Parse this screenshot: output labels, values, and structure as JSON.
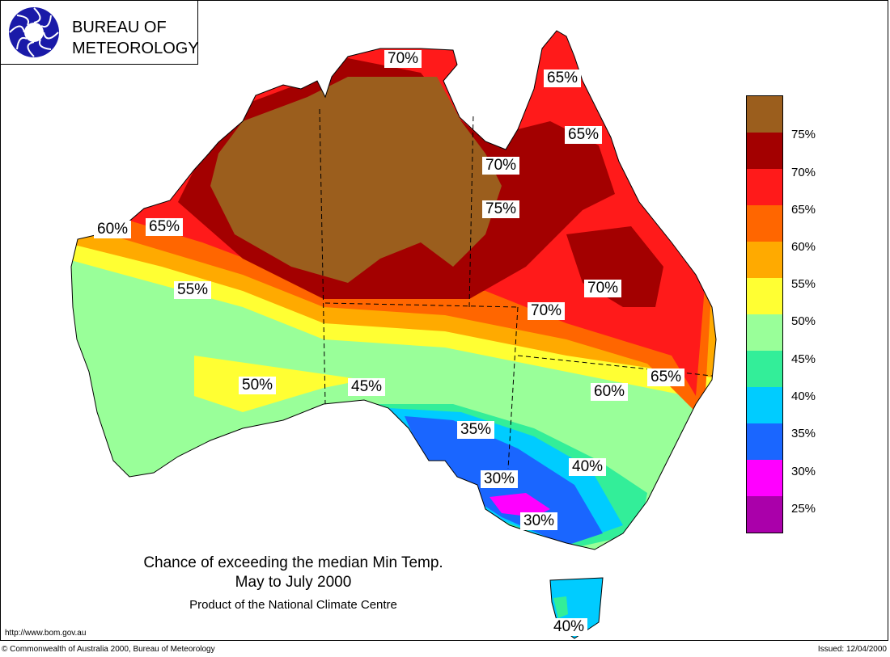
{
  "logo": {
    "line1": "BUREAU OF",
    "line2": "METEOROLOGY",
    "icon": "bom-swirl-logo"
  },
  "title": {
    "line1": "Chance of exceeding the median Min Temp.",
    "line2": "May to July 2000",
    "subtitle": "Product of the National Climate Centre"
  },
  "footer": {
    "url": "http://www.bom.gov.au",
    "copyright": "© Commonwealth of Australia 2000, Bureau of Meteorology",
    "issued": "Issued: 12/04/2000"
  },
  "legend": [
    {
      "label": "75%",
      "color": "#9b5e1d"
    },
    {
      "label": "70%",
      "color": "#a30000"
    },
    {
      "label": "65%",
      "color": "#ff1a1a"
    },
    {
      "label": "60%",
      "color": "#ff6600"
    },
    {
      "label": "55%",
      "color": "#ffaa00"
    },
    {
      "label": "50%",
      "color": "#ffff33"
    },
    {
      "label": "45%",
      "color": "#99ff99"
    },
    {
      "label": "40%",
      "color": "#33ee99"
    },
    {
      "label": "35%",
      "color": "#00ccff"
    },
    {
      "label": "30%",
      "color": "#1a66ff"
    },
    {
      "label": "25%",
      "color": "#ff00ff"
    },
    {
      "label": "",
      "color": "#aa00aa"
    }
  ],
  "map_labels": [
    "70%",
    "65%",
    "65%",
    "70%",
    "75%",
    "60%",
    "65%",
    "55%",
    "70%",
    "70%",
    "65%",
    "60%",
    "50%",
    "45%",
    "35%",
    "40%",
    "30%",
    "30%",
    "40%"
  ]
}
